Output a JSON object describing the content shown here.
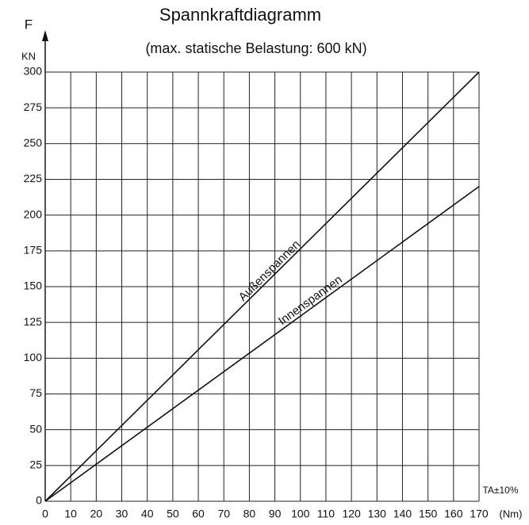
{
  "chart_data": {
    "type": "line",
    "title": "Spannkraftdiagramm",
    "subtitle": "(max. statische Belastung: 600 kN)",
    "y_label": "F",
    "y_unit": "KN",
    "x_label": "TA±10%",
    "x_unit": "(Nm)",
    "x": [
      0,
      170
    ],
    "series": [
      {
        "name": "Außenspannen",
        "color": "#111111",
        "values": [
          0,
          300
        ]
      },
      {
        "name": "Innenspannen",
        "color": "#111111",
        "values": [
          0,
          220
        ]
      }
    ],
    "xlim": [
      0,
      170
    ],
    "ylim": [
      0,
      300
    ],
    "xticks": [
      0,
      10,
      20,
      30,
      40,
      50,
      60,
      70,
      80,
      90,
      100,
      110,
      120,
      130,
      140,
      150,
      160,
      170
    ],
    "yticks": [
      0,
      25,
      50,
      75,
      100,
      125,
      150,
      175,
      200,
      225,
      250,
      275,
      300
    ],
    "grid": true
  }
}
